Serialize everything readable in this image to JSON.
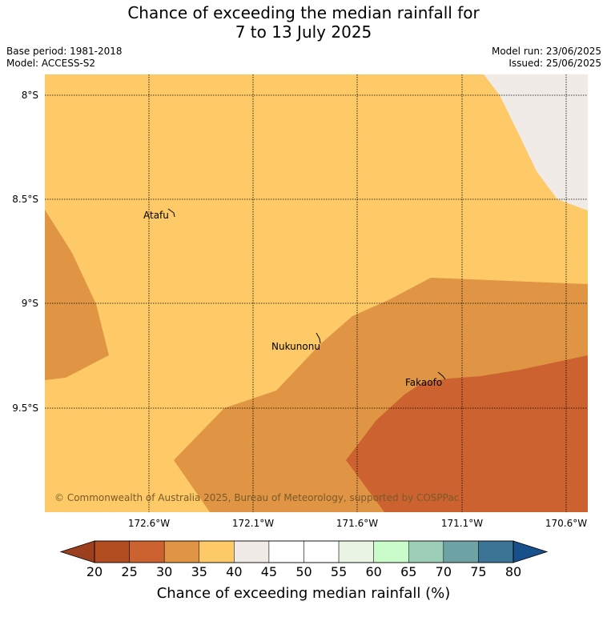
{
  "title": {
    "line1": "Chance of exceeding the median rainfall for",
    "line2": "7 to 13 July 2025"
  },
  "meta": {
    "base_period": "Base period: 1981-2018",
    "model": "Model: ACCESS-S2",
    "model_run": "Model run: 23/06/2025",
    "issued": "Issued: 25/06/2025"
  },
  "map": {
    "lat_labels": [
      "8°S",
      "8.5°S",
      "9°S",
      "9.5°S"
    ],
    "lon_labels": [
      "172.6°W",
      "172.1°W",
      "171.6°W",
      "171.1°W",
      "170.6°W"
    ],
    "places": [
      "Atafu",
      "Nukunonu",
      "Fakaofo"
    ],
    "copyright": "© Commonwealth of Australia 2025, Bureau of Meteorology, supported by COSPPac",
    "category_colors": {
      "20-25": "#b24d22",
      "25-30": "#cb6230",
      "30-35": "#e09545",
      "35-40": "#fdca67",
      "40-45": "#f0ebe6",
      "under-20": "#9c3f1e"
    }
  },
  "colorbar": {
    "ticks": [
      "20",
      "25",
      "30",
      "35",
      "40",
      "45",
      "50",
      "55",
      "60",
      "65",
      "70",
      "75",
      "80"
    ],
    "colors": [
      "#b24d22",
      "#cb6230",
      "#e09545",
      "#fdca67",
      "#f0ebe6",
      "#ffffff",
      "#ffffff",
      "#eaf5e6",
      "#c9fcc8",
      "#9dcfb8",
      "#6ea3a6",
      "#3c7496"
    ],
    "under_color": "#9c3f1e",
    "over_color": "#17508a",
    "label": "Chance of exceeding median rainfall (%)"
  }
}
